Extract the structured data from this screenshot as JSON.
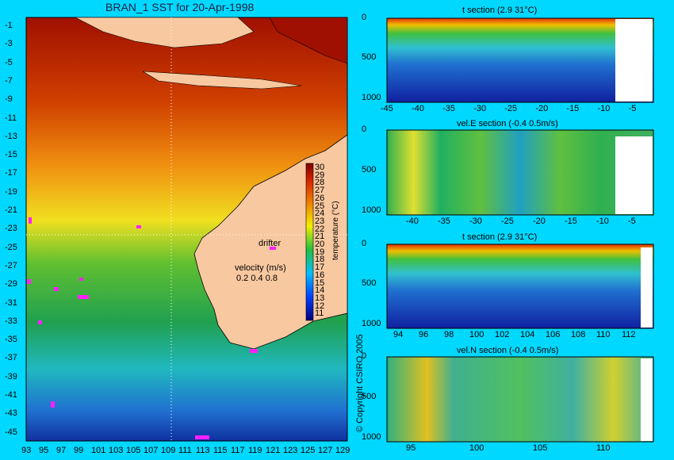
{
  "map": {
    "title": "BRAN_1 SST for 20-Apr-1998",
    "lat_ticks": [
      "-1",
      "-3",
      "-5",
      "-7",
      "-9",
      "-11",
      "-13",
      "-15",
      "-17",
      "-19",
      "-21",
      "-23",
      "-25",
      "-27",
      "-29",
      "-31",
      "-33",
      "-35",
      "-37",
      "-39",
      "-41",
      "-43",
      "-45"
    ],
    "lon_ticks": [
      "93",
      "95",
      "97",
      "99",
      "101",
      "103",
      "105",
      "107",
      "109",
      "111",
      "113",
      "115",
      "117",
      "119",
      "121",
      "123",
      "125",
      "127",
      "129"
    ],
    "colorbar_ticks": [
      "30",
      "29",
      "28",
      "27",
      "26",
      "25",
      "24",
      "23",
      "22",
      "21",
      "20",
      "19",
      "18",
      "17",
      "16",
      "15",
      "14",
      "13",
      "12",
      "11"
    ],
    "colorbar_label": "temperature (°C)",
    "drifter_label": "drifter",
    "velocity_label": "velocity (m/s)",
    "velocity_scale": "0.2 0.4 0.8",
    "copyright": "© Copyright CSIRO 2005",
    "colors": {
      "warm": "#b02000",
      "mid": "#f0b020",
      "cool": "#20a040",
      "cold": "#20c0d0",
      "land": "#f8c8a0",
      "drifter": "#ff20ff"
    }
  },
  "panels": [
    {
      "title": "t section (2.9      31°C)",
      "xticks": [
        "-45",
        "-40",
        "-35",
        "-30",
        "-25",
        "-20",
        "-15",
        "-10",
        "-5"
      ],
      "yticks": [
        "0",
        "500",
        "1000"
      ]
    },
    {
      "title": "vel.E section (-0.4      0.5m/s)",
      "xticks": [
        "-40",
        "-35",
        "-30",
        "-25",
        "-20",
        "-15",
        "-10",
        "-5"
      ],
      "yticks": [
        "0",
        "500",
        "1000"
      ]
    },
    {
      "title": "t section (2.9      31°C)",
      "xticks": [
        "94",
        "96",
        "98",
        "100",
        "102",
        "104",
        "106",
        "108",
        "110",
        "112"
      ],
      "yticks": [
        "0",
        "500",
        "1000"
      ]
    },
    {
      "title": "vel.N section (-0.4      0.5m/s)",
      "xticks": [
        "95",
        "100",
        "105",
        "110"
      ],
      "yticks": [
        "0",
        "500",
        "1000"
      ]
    }
  ]
}
